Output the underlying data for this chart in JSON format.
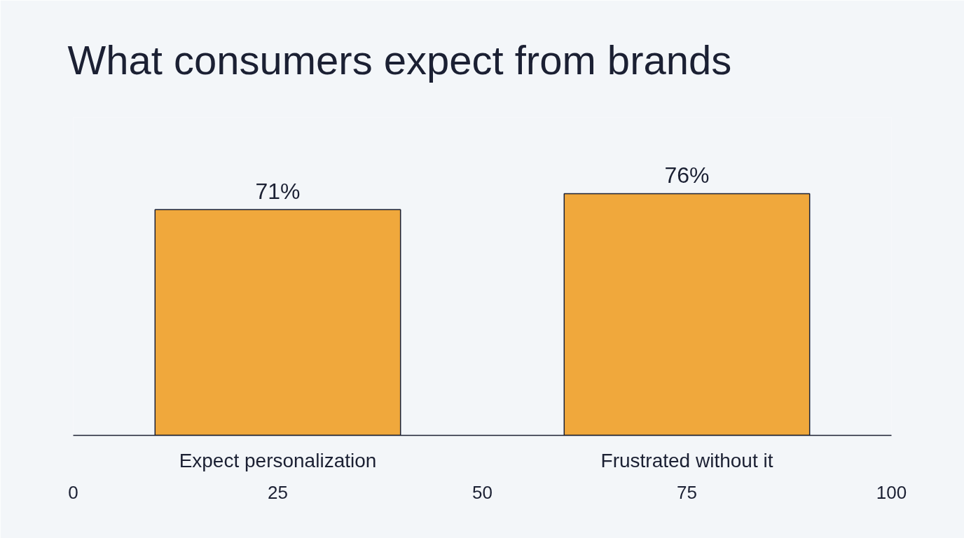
{
  "chart_data": {
    "type": "bar",
    "title": "What consumers expect from brands",
    "x": [
      25,
      75
    ],
    "values": [
      71,
      76
    ],
    "color": "#f0a83c",
    "data_labels": true,
    "value_labels": [
      "71%",
      "76%"
    ],
    "xlim": [
      0,
      100
    ],
    "xticks": [
      0,
      25,
      50,
      75,
      100
    ],
    "ylim": [
      0,
      100
    ],
    "tick_labels": "x",
    "grid": false,
    "annotations": [
      "Expect personalization",
      "Frustrated without it"
    ]
  }
}
